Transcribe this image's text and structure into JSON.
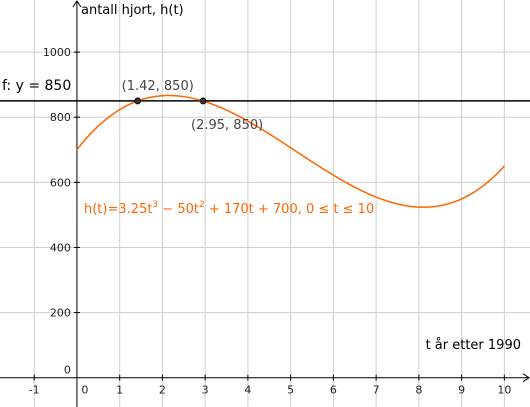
{
  "chart_data": {
    "type": "line",
    "xlabel": "t år etter 1990",
    "ylabel": "antall hjort, h(t)",
    "xlim": [
      -1.8,
      10.6
    ],
    "ylim": [
      -90,
      1160
    ],
    "grid": true,
    "x_ticks": [
      -1,
      0,
      1,
      2,
      3,
      4,
      5,
      6,
      7,
      8,
      9,
      10
    ],
    "y_ticks": [
      0,
      200,
      400,
      600,
      800,
      1000
    ],
    "x_tick_labels": [
      "-1",
      "0",
      "1",
      "2",
      "3",
      "4",
      "5",
      "6",
      "7",
      "8",
      "9",
      "10"
    ],
    "y_tick_labels": [
      "0",
      "200",
      "400",
      "600",
      "800",
      "1000"
    ],
    "function": {
      "coefficients": [
        3.25,
        -50,
        170,
        700
      ],
      "domain": [
        0,
        10
      ],
      "label_main": "h(t)=3.25t",
      "label_exp1": "3",
      "label_mid": " − 50t",
      "label_exp2": "2",
      "label_tail": " + 170t + 700, 0 ≤ t ≤ 10",
      "color": "#ff6600"
    },
    "horizontal_line": {
      "y": 850,
      "label": "f: y = 850",
      "color": "#000000"
    },
    "points": [
      {
        "x": 1.42,
        "y": 850,
        "label": "(1.42, 850)"
      },
      {
        "x": 2.95,
        "y": 850,
        "label": "(2.95, 850)"
      }
    ]
  }
}
